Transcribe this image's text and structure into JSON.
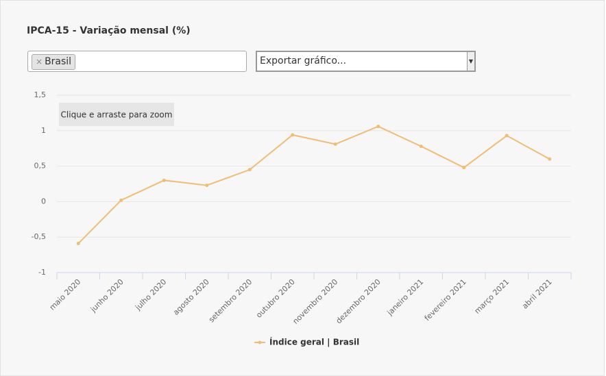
{
  "filter": {
    "remove_icon": "×",
    "tags": [
      "Brasil"
    ],
    "export_placeholder": "Exportar gráfico..."
  },
  "chart_data": {
    "type": "line",
    "title": "IPCA-15 - Variação mensal (%)",
    "annotation": "Clique e arraste para zoom",
    "categories": [
      "maio 2020",
      "junho 2020",
      "julho 2020",
      "agosto 2020",
      "setembro 2020",
      "outubro 2020",
      "novembro 2020",
      "dezembro 2020",
      "janeiro 2021",
      "fevereiro 2021",
      "março 2021",
      "abril 2021"
    ],
    "series": [
      {
        "name": "Índice geral | Brasil",
        "color": "#f1bc74",
        "values": [
          -0.59,
          0.02,
          0.3,
          0.23,
          0.45,
          0.94,
          0.81,
          1.06,
          0.78,
          0.48,
          0.93,
          0.6
        ]
      }
    ],
    "ylim": [
      -1,
      1.5
    ],
    "yticks": [
      -1,
      {
        "value": -0.5,
        "label": "-0,5"
      },
      0,
      {
        "value": 0.5,
        "label": "0,5"
      },
      1,
      {
        "value": 1.5,
        "label": "1,5"
      }
    ],
    "grid": true
  }
}
